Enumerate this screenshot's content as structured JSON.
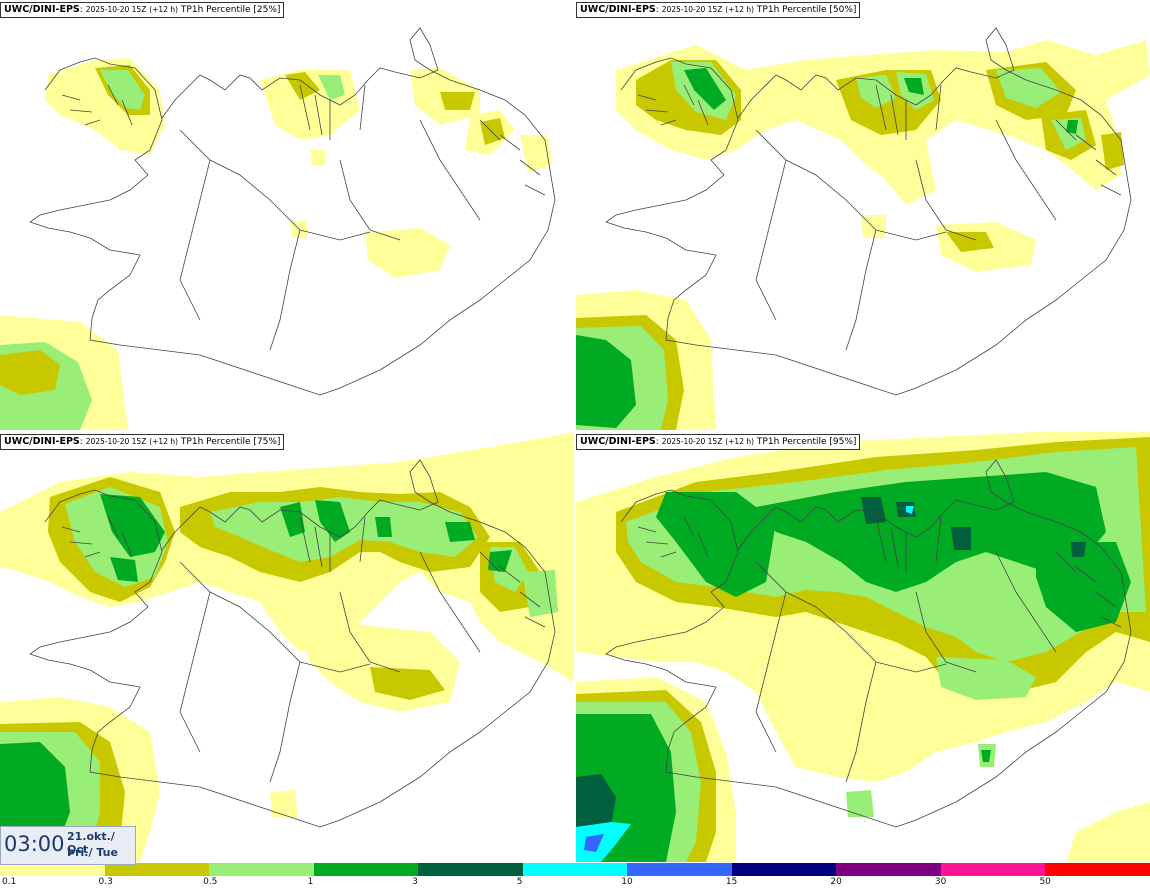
{
  "panels": [
    {
      "model": "UWC/DINI-EPS",
      "run": "2025-10-20 15Z",
      "lead": "(+12 h)",
      "field": "TP1h Percentile [25%]"
    },
    {
      "model": "UWC/DINI-EPS",
      "run": "2025-10-20 15Z",
      "lead": "(+12 h)",
      "field": "TP1h Percentile [50%]"
    },
    {
      "model": "UWC/DINI-EPS",
      "run": "2025-10-20 15Z",
      "lead": "(+12 h)",
      "field": "TP1h Percentile [75%]"
    },
    {
      "model": "UWC/DINI-EPS",
      "run": "2025-10-20 15Z",
      "lead": "(+12 h)",
      "field": "TP1h Percentile [95%]"
    }
  ],
  "valid_time": {
    "time": "03:00",
    "date": "21.okt./ Oct",
    "weekday": "Þri./ Tue"
  },
  "colorbar": {
    "colors": [
      "#ffff99",
      "#c8c800",
      "#99ee77",
      "#00aa22",
      "#005f3c",
      "#00ffff",
      "#3366ff",
      "#000080",
      "#800080",
      "#ff1493",
      "#ff0000"
    ],
    "labels": [
      "0.1",
      "0.3",
      "0.5",
      "1",
      "3",
      "5",
      "10",
      "15",
      "20",
      "30",
      "50"
    ]
  },
  "map_colors": {
    "light_yellow": "#ffff99",
    "olive": "#c8c800",
    "light_green": "#99ee77",
    "green": "#00aa22",
    "dark_green": "#005f3c",
    "cyan": "#00ffff",
    "blue": "#3366ff",
    "outline": "#444444"
  }
}
